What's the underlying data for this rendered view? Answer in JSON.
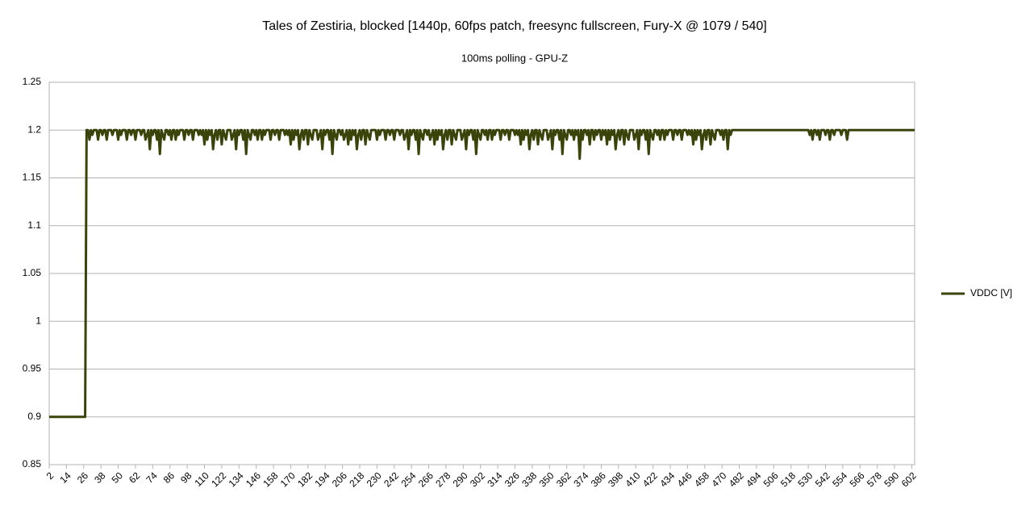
{
  "chart_data": {
    "type": "line",
    "title": "Tales of Zestiria, blocked [1440p, 60fps patch, freesync fullscreen, Fury-X @ 1079 / 540]",
    "subtitle": "100ms polling - GPU-Z",
    "legend": "right",
    "grid": true,
    "ylim": [
      0.85,
      1.25
    ],
    "yticks": [
      0.85,
      0.9,
      0.95,
      1,
      1.05,
      1.1,
      1.15,
      1.2,
      1.25
    ],
    "xlim": [
      2,
      604
    ],
    "xticks": [
      2,
      14,
      26,
      38,
      50,
      62,
      74,
      86,
      98,
      110,
      122,
      134,
      146,
      158,
      170,
      182,
      194,
      206,
      218,
      230,
      242,
      254,
      266,
      278,
      290,
      302,
      314,
      326,
      338,
      350,
      362,
      374,
      386,
      398,
      410,
      422,
      434,
      446,
      458,
      470,
      482,
      494,
      506,
      518,
      530,
      542,
      554,
      566,
      578,
      590,
      602
    ],
    "x": [
      2,
      3,
      4,
      5,
      6,
      7,
      8,
      9,
      10,
      11,
      12,
      13,
      14,
      15,
      16,
      17,
      18,
      19,
      20,
      21,
      22,
      23,
      24,
      25,
      26,
      27,
      28,
      29,
      30,
      31,
      32,
      33,
      34,
      35,
      36,
      37,
      38,
      39,
      40,
      41,
      42,
      43,
      44,
      45,
      46,
      47,
      48,
      49,
      50,
      51,
      52,
      53,
      54,
      55,
      56,
      57,
      58,
      59,
      60,
      61,
      62,
      63,
      64,
      65,
      66,
      67,
      68,
      69,
      70,
      71,
      72,
      73,
      74,
      75,
      76,
      77,
      78,
      79,
      80,
      81,
      82,
      83,
      84,
      85,
      86,
      87,
      88,
      89,
      90,
      91,
      92,
      93,
      94,
      95,
      96,
      97,
      98,
      99,
      100,
      101,
      102,
      103,
      104,
      105,
      106,
      107,
      108,
      109,
      110,
      111,
      112,
      113,
      114,
      115,
      116,
      117,
      118,
      119,
      120,
      121,
      122,
      123,
      124,
      125,
      126,
      127,
      128,
      129,
      130,
      131,
      132,
      133,
      134,
      135,
      136,
      137,
      138,
      139,
      140,
      141,
      142,
      143,
      144,
      145,
      146,
      147,
      148,
      149,
      150,
      151,
      152,
      153,
      154,
      155,
      156,
      157,
      158,
      159,
      160,
      161,
      162,
      163,
      164,
      165,
      166,
      167,
      168,
      169,
      170,
      171,
      172,
      173,
      174,
      175,
      176,
      177,
      178,
      179,
      180,
      181,
      182,
      183,
      184,
      185,
      186,
      187,
      188,
      189,
      190,
      191,
      192,
      193,
      194,
      195,
      196,
      197,
      198,
      199,
      200,
      201,
      202,
      203,
      204,
      205,
      206,
      207,
      208,
      209,
      210,
      211,
      212,
      213,
      214,
      215,
      216,
      217,
      218,
      219,
      220,
      221,
      222,
      223,
      224,
      225,
      226,
      227,
      228,
      229,
      230,
      231,
      232,
      233,
      234,
      235,
      236,
      237,
      238,
      239,
      240,
      241,
      242,
      243,
      244,
      245,
      246,
      247,
      248,
      249,
      250,
      251,
      252,
      253,
      254,
      255,
      256,
      257,
      258,
      259,
      260,
      261,
      262,
      263,
      264,
      265,
      266,
      267,
      268,
      269,
      270,
      271,
      272,
      273,
      274,
      275,
      276,
      277,
      278,
      279,
      280,
      281,
      282,
      283,
      284,
      285,
      286,
      287,
      288,
      289,
      290,
      291,
      292,
      293,
      294,
      295,
      296,
      297,
      298,
      299,
      300,
      301,
      302,
      303,
      304,
      305,
      306,
      307,
      308,
      309,
      310,
      311,
      312,
      313,
      314,
      315,
      316,
      317,
      318,
      319,
      320,
      321,
      322,
      323,
      324,
      325,
      326,
      327,
      328,
      329,
      330,
      331,
      332,
      333,
      334,
      335,
      336,
      337,
      338,
      339,
      340,
      341,
      342,
      343,
      344,
      345,
      346,
      347,
      348,
      349,
      350,
      351,
      352,
      353,
      354,
      355,
      356,
      357,
      358,
      359,
      360,
      361,
      362,
      363,
      364,
      365,
      366,
      367,
      368,
      369,
      370,
      371,
      372,
      373,
      374,
      375,
      376,
      377,
      378,
      379,
      380,
      381,
      382,
      383,
      384,
      385,
      386,
      387,
      388,
      389,
      390,
      391,
      392,
      393,
      394,
      395,
      396,
      397,
      398,
      399,
      400,
      401,
      402,
      403,
      404,
      405,
      406,
      407,
      408,
      409,
      410,
      411,
      412,
      413,
      414,
      415,
      416,
      417,
      418,
      419,
      420,
      421,
      422,
      423,
      424,
      425,
      426,
      427,
      428,
      429,
      430,
      431,
      432,
      433,
      434,
      435,
      436,
      437,
      438,
      439,
      440,
      441,
      442,
      443,
      444,
      445,
      446,
      447,
      448,
      449,
      450,
      451,
      452,
      453,
      454,
      455,
      456,
      457,
      458,
      459,
      460,
      461,
      462,
      463,
      464,
      465,
      466,
      467,
      468,
      469,
      470,
      471,
      472,
      473,
      474,
      475,
      476,
      477,
      478,
      479,
      480,
      481,
      482,
      483,
      484,
      485,
      486,
      487,
      488,
      489,
      490,
      491,
      492,
      493,
      494,
      495,
      496,
      497,
      498,
      499,
      500,
      501,
      502,
      503,
      504,
      505,
      506,
      507,
      508,
      509,
      510,
      511,
      512,
      513,
      514,
      515,
      516,
      517,
      518,
      519,
      520,
      521,
      522,
      523,
      524,
      525,
      526,
      527,
      528,
      529,
      530,
      531,
      532,
      533,
      534,
      535,
      536,
      537,
      538,
      539,
      540,
      541,
      542,
      543,
      544,
      545,
      546,
      547,
      548,
      549,
      550,
      551,
      552,
      553,
      554,
      555,
      556,
      557,
      558,
      559,
      560,
      561,
      562,
      563,
      564,
      565,
      566,
      567,
      568,
      569,
      570,
      571,
      572,
      573,
      574,
      575,
      576,
      577,
      578,
      579,
      580,
      581,
      582,
      583,
      584,
      585,
      586,
      587,
      588,
      589,
      590,
      591,
      592,
      593,
      594,
      595,
      596,
      597,
      598,
      599,
      600,
      601,
      602,
      603,
      604
    ],
    "series": [
      {
        "name": "VDDC [V]",
        "color": "#3a430a",
        "values": [
          0.9,
          0.9,
          0.9,
          0.9,
          0.9,
          0.9,
          0.9,
          0.9,
          0.9,
          0.9,
          0.9,
          0.9,
          0.9,
          0.9,
          0.9,
          0.9,
          0.9,
          0.9,
          0.9,
          0.9,
          0.9,
          0.9,
          0.9,
          0.9,
          0.9,
          0.9,
          1.2,
          1.2,
          1.19,
          1.2,
          1.195,
          1.2,
          1.2,
          1.2,
          1.19,
          1.2,
          1.2,
          1.195,
          1.2,
          1.2,
          1.19,
          1.2,
          1.2,
          1.2,
          1.195,
          1.2,
          1.2,
          1.2,
          1.19,
          1.2,
          1.195,
          1.2,
          1.2,
          1.2,
          1.19,
          1.2,
          1.2,
          1.195,
          1.2,
          1.2,
          1.19,
          1.2,
          1.2,
          1.2,
          1.195,
          1.2,
          1.2,
          1.19,
          1.195,
          1.2,
          1.18,
          1.2,
          1.195,
          1.2,
          1.2,
          1.19,
          1.2,
          1.175,
          1.2,
          1.195,
          1.19,
          1.2,
          1.2,
          1.195,
          1.2,
          1.19,
          1.2,
          1.2,
          1.19,
          1.2,
          1.195,
          1.2,
          1.2,
          1.2,
          1.19,
          1.2,
          1.2,
          1.195,
          1.2,
          1.2,
          1.19,
          1.2,
          1.2,
          1.2,
          1.195,
          1.2,
          1.195,
          1.2,
          1.185,
          1.2,
          1.19,
          1.2,
          1.195,
          1.2,
          1.18,
          1.195,
          1.2,
          1.19,
          1.2,
          1.2,
          1.185,
          1.2,
          1.195,
          1.19,
          1.2,
          1.2,
          1.2,
          1.19,
          1.195,
          1.2,
          1.18,
          1.2,
          1.195,
          1.2,
          1.2,
          1.19,
          1.2,
          1.175,
          1.2,
          1.195,
          1.19,
          1.2,
          1.2,
          1.195,
          1.2,
          1.19,
          1.2,
          1.2,
          1.19,
          1.2,
          1.195,
          1.2,
          1.2,
          1.2,
          1.19,
          1.2,
          1.2,
          1.195,
          1.2,
          1.2,
          1.19,
          1.2,
          1.2,
          1.2,
          1.195,
          1.2,
          1.195,
          1.2,
          1.185,
          1.2,
          1.19,
          1.2,
          1.195,
          1.2,
          1.18,
          1.195,
          1.2,
          1.19,
          1.2,
          1.2,
          1.185,
          1.2,
          1.195,
          1.19,
          1.2,
          1.2,
          1.2,
          1.19,
          1.195,
          1.2,
          1.18,
          1.2,
          1.195,
          1.2,
          1.2,
          1.19,
          1.2,
          1.175,
          1.2,
          1.195,
          1.19,
          1.2,
          1.2,
          1.195,
          1.2,
          1.19,
          1.195,
          1.2,
          1.185,
          1.2,
          1.19,
          1.2,
          1.195,
          1.2,
          1.18,
          1.195,
          1.2,
          1.19,
          1.2,
          1.2,
          1.185,
          1.2,
          1.195,
          1.19,
          1.2,
          1.2,
          1.2,
          1.2,
          1.19,
          1.2,
          1.195,
          1.2,
          1.2,
          1.2,
          1.19,
          1.2,
          1.2,
          1.195,
          1.2,
          1.2,
          1.19,
          1.2,
          1.2,
          1.2,
          1.195,
          1.2,
          1.2,
          1.19,
          1.195,
          1.2,
          1.18,
          1.2,
          1.195,
          1.2,
          1.2,
          1.19,
          1.2,
          1.175,
          1.2,
          1.195,
          1.19,
          1.2,
          1.2,
          1.195,
          1.2,
          1.19,
          1.195,
          1.2,
          1.185,
          1.2,
          1.19,
          1.2,
          1.195,
          1.2,
          1.18,
          1.195,
          1.2,
          1.19,
          1.2,
          1.2,
          1.185,
          1.2,
          1.195,
          1.19,
          1.2,
          1.2,
          1.2,
          1.19,
          1.195,
          1.2,
          1.18,
          1.2,
          1.195,
          1.2,
          1.2,
          1.19,
          1.2,
          1.175,
          1.2,
          1.195,
          1.19,
          1.2,
          1.2,
          1.195,
          1.2,
          1.19,
          1.2,
          1.2,
          1.19,
          1.2,
          1.195,
          1.2,
          1.2,
          1.2,
          1.19,
          1.2,
          1.2,
          1.195,
          1.2,
          1.2,
          1.19,
          1.2,
          1.2,
          1.2,
          1.195,
          1.2,
          1.195,
          1.2,
          1.185,
          1.2,
          1.19,
          1.2,
          1.195,
          1.2,
          1.18,
          1.195,
          1.2,
          1.19,
          1.2,
          1.2,
          1.185,
          1.2,
          1.195,
          1.19,
          1.2,
          1.2,
          1.2,
          1.19,
          1.195,
          1.2,
          1.18,
          1.2,
          1.195,
          1.2,
          1.2,
          1.19,
          1.2,
          1.175,
          1.2,
          1.195,
          1.19,
          1.2,
          1.2,
          1.195,
          1.2,
          1.19,
          1.2,
          1.195,
          1.2,
          1.17,
          1.2,
          1.19,
          1.2,
          1.2,
          1.195,
          1.2,
          1.185,
          1.2,
          1.2,
          1.19,
          1.2,
          1.195,
          1.2,
          1.2,
          1.19,
          1.2,
          1.195,
          1.2,
          1.185,
          1.2,
          1.19,
          1.2,
          1.195,
          1.2,
          1.18,
          1.195,
          1.2,
          1.19,
          1.2,
          1.2,
          1.185,
          1.2,
          1.195,
          1.19,
          1.2,
          1.2,
          1.2,
          1.19,
          1.195,
          1.2,
          1.18,
          1.2,
          1.195,
          1.2,
          1.2,
          1.19,
          1.2,
          1.175,
          1.2,
          1.195,
          1.19,
          1.2,
          1.2,
          1.195,
          1.2,
          1.19,
          1.2,
          1.2,
          1.19,
          1.2,
          1.195,
          1.2,
          1.2,
          1.2,
          1.19,
          1.2,
          1.2,
          1.195,
          1.2,
          1.2,
          1.19,
          1.2,
          1.2,
          1.2,
          1.195,
          1.2,
          1.195,
          1.2,
          1.185,
          1.2,
          1.19,
          1.2,
          1.195,
          1.2,
          1.18,
          1.195,
          1.2,
          1.19,
          1.2,
          1.2,
          1.185,
          1.2,
          1.195,
          1.19,
          1.2,
          1.2,
          1.2,
          1.195,
          1.2,
          1.19,
          1.2,
          1.2,
          1.18,
          1.2,
          1.195,
          1.2,
          1.2,
          1.2,
          1.2,
          1.2,
          1.2,
          1.2,
          1.2,
          1.2,
          1.2,
          1.2,
          1.2,
          1.2,
          1.2,
          1.2,
          1.2,
          1.2,
          1.2,
          1.2,
          1.2,
          1.2,
          1.2,
          1.2,
          1.2,
          1.2,
          1.2,
          1.2,
          1.2,
          1.2,
          1.2,
          1.2,
          1.2,
          1.2,
          1.2,
          1.2,
          1.2,
          1.2,
          1.2,
          1.2,
          1.2,
          1.2,
          1.2,
          1.2,
          1.2,
          1.2,
          1.2,
          1.2,
          1.2,
          1.2,
          1.2,
          1.2,
          1.2,
          1.2,
          1.2,
          1.195,
          1.2,
          1.19,
          1.2,
          1.2,
          1.195,
          1.2,
          1.19,
          1.2,
          1.2,
          1.2,
          1.195,
          1.2,
          1.2,
          1.19,
          1.2,
          1.2,
          1.195,
          1.2,
          1.2,
          1.2,
          1.2,
          1.195,
          1.2,
          1.2,
          1.2,
          1.19,
          1.2,
          1.2,
          1.2,
          1.2,
          1.2,
          1.2,
          1.2,
          1.2,
          1.2,
          1.2,
          1.2,
          1.2,
          1.2,
          1.2,
          1.2,
          1.2,
          1.2,
          1.2,
          1.2,
          1.2,
          1.2,
          1.2,
          1.2,
          1.2,
          1.2,
          1.2,
          1.2,
          1.2,
          1.2,
          1.2,
          1.2,
          1.2,
          1.2,
          1.2,
          1.2,
          1.2,
          1.2,
          1.2,
          1.2,
          1.2,
          1.2,
          1.2,
          1.2,
          1.2,
          1.2,
          1.2,
          1.2
        ]
      }
    ]
  }
}
